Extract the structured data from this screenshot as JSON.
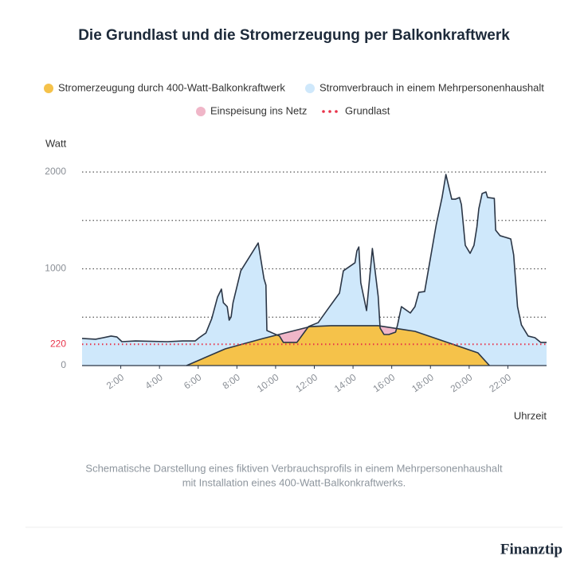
{
  "chart_data": {
    "type": "area",
    "title": "Die Grundlast und die Stromerzeugung per Balkonkraftwerk",
    "y_label": "Watt",
    "x_label": "Uhrzeit",
    "xlim": [
      0,
      24
    ],
    "ylim": [
      0,
      2000
    ],
    "xticks": [
      {
        "value": 2,
        "label": "2:00"
      },
      {
        "value": 4,
        "label": "4:00"
      },
      {
        "value": 6,
        "label": "6:00"
      },
      {
        "value": 8,
        "label": "8:00"
      },
      {
        "value": 10,
        "label": "10:00"
      },
      {
        "value": 12,
        "label": "12:00"
      },
      {
        "value": 14,
        "label": "14:00"
      },
      {
        "value": 16,
        "label": "16:00"
      },
      {
        "value": 18,
        "label": "18:00"
      },
      {
        "value": 20,
        "label": "20:00"
      },
      {
        "value": 22,
        "label": "22:00"
      }
    ],
    "yticks": [
      0,
      220,
      1000,
      2000
    ],
    "ygrid": [
      500,
      1000,
      1500,
      2000
    ],
    "series": [
      {
        "name": "Stromverbrauch in einem Mehrpersonenhaushalt",
        "color": "#cfe8fb",
        "x": [
          0,
          0.7,
          1.5,
          1.8,
          2.06,
          2.76,
          4.4,
          5.2,
          5.85,
          6.05,
          6.4,
          6.7,
          7.0,
          7.2,
          7.3,
          7.5,
          7.6,
          7.7,
          7.8,
          8.2,
          9.1,
          9.4,
          9.5,
          9.55,
          10.2,
          10.4,
          11.1,
          11.7,
          12.2,
          12.7,
          13.3,
          13.5,
          14.1,
          14.2,
          14.3,
          14.4,
          14.7,
          15.0,
          15.3,
          15.4,
          15.6,
          15.85,
          16.2,
          16.3,
          16.5,
          16.96,
          17.2,
          17.4,
          17.7,
          18.3,
          18.6,
          18.8,
          19.1,
          19.3,
          19.5,
          19.6,
          19.8,
          20.05,
          20.25,
          20.4,
          20.5,
          20.67,
          20.87,
          20.95,
          21.3,
          21.37,
          21.6,
          22.15,
          22.3,
          22.5,
          22.7,
          23.05,
          23.4,
          23.7,
          24
        ],
        "values": [
          280,
          272,
          305,
          296,
          247,
          255,
          247,
          255,
          255,
          288,
          337,
          485,
          708,
          790,
          650,
          609,
          469,
          502,
          650,
          979,
          1267,
          897,
          831,
          362,
          305,
          239,
          239,
          403,
          444,
          584,
          749,
          979,
          1062,
          1185,
          1226,
          856,
          568,
          1210,
          716,
          387,
          321,
          321,
          346,
          420,
          609,
          543,
          609,
          757,
          765,
          1457,
          1737,
          1975,
          1720,
          1720,
          1737,
          1663,
          1243,
          1160,
          1243,
          1432,
          1621,
          1778,
          1794,
          1737,
          1728,
          1399,
          1342,
          1309,
          1144,
          609,
          420,
          305,
          288,
          239,
          239
        ]
      },
      {
        "name": "Stromerzeugung durch 400-Watt-Balkonkraftwerk",
        "color": "#f5c24a",
        "x": [
          5.4,
          7.4,
          9.35,
          11.8,
          12.85,
          15.3,
          17.2,
          20.45,
          21.05
        ],
        "values": [
          0,
          173,
          280,
          403,
          412,
          412,
          354,
          132,
          0
        ]
      }
    ],
    "feed_in": {
      "name": "Einspeisung ins Netz",
      "color": "#f0b6c8"
    },
    "baseline": {
      "name": "Grundlast",
      "value": 220,
      "color": "#e8334a"
    },
    "caption": [
      "Schematische Darstellung eines fiktiven Verbrauchsprofils in einem Mehrpersonenhaushalt",
      "mit Installation eines 400-Watt-Balkonkraftwerks."
    ],
    "brand": "Finanztip"
  }
}
